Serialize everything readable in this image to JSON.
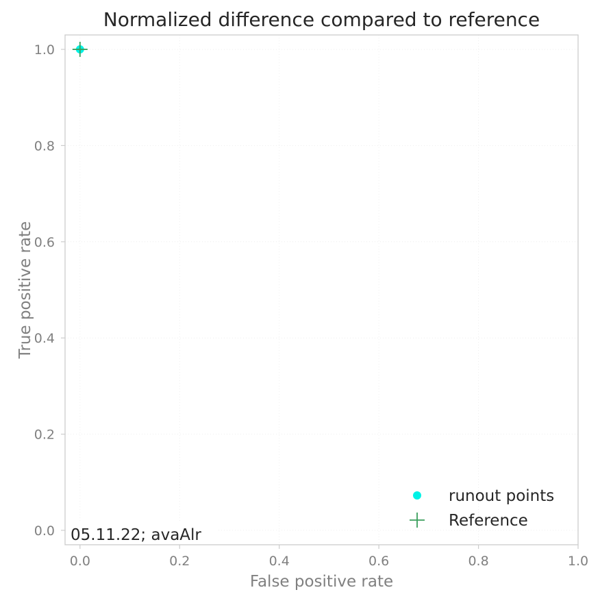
{
  "chart_data": {
    "type": "scatter",
    "title": "Normalized difference compared to reference",
    "xlabel": "False positive rate",
    "ylabel": "True positive rate",
    "xlim": [
      -0.03,
      1.0
    ],
    "ylim": [
      -0.03,
      1.03
    ],
    "xticks": [
      0.0,
      0.2,
      0.4,
      0.6,
      0.8,
      1.0
    ],
    "yticks": [
      0.0,
      0.2,
      0.4,
      0.6,
      0.8,
      1.0
    ],
    "xtick_labels": [
      "0.0",
      "0.2",
      "0.4",
      "0.6",
      "0.8",
      "1.0"
    ],
    "ytick_labels": [
      "0.0",
      "0.2",
      "0.4",
      "0.6",
      "0.8",
      "1.0"
    ],
    "grid": true,
    "legend_position": "bottom-right",
    "series": [
      {
        "name": "runout points",
        "marker": "circle",
        "color": "#00f2e6",
        "points": [
          {
            "x": 0.0,
            "y": 1.0
          }
        ]
      },
      {
        "name": "Reference",
        "marker": "plus",
        "color": "#3a9e5c",
        "points": [
          {
            "x": 0.0,
            "y": 1.0
          }
        ]
      }
    ],
    "annotation": "05.11.22; avaAlr"
  }
}
